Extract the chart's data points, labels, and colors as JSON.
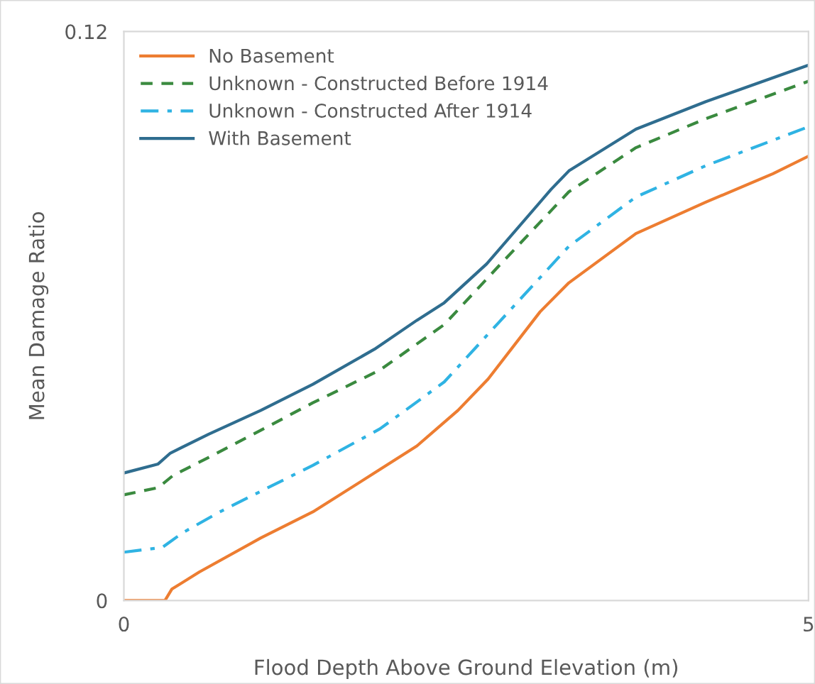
{
  "chart_data": {
    "type": "line",
    "xlabel": "Flood Depth Above Ground Elevation (m)",
    "ylabel": "Mean Damage Ratio",
    "xlim": [
      0,
      5
    ],
    "xticks": [
      0,
      5
    ],
    "ylim": [
      0,
      0.12
    ],
    "yticks": [
      0,
      0.12
    ],
    "grid": false,
    "legend": "top left",
    "series": [
      {
        "name": "No Basement",
        "color": "#ed7d31",
        "line_style": "solid",
        "x": [
          0,
          0.3,
          0.35,
          0.55,
          1.0,
          1.38,
          1.83,
          2.14,
          2.44,
          2.66,
          3.04,
          3.25,
          3.74,
          4.25,
          4.74,
          5
        ],
        "values": [
          0,
          0,
          0.0024,
          0.006,
          0.0132,
          0.0187,
          0.0269,
          0.0326,
          0.0401,
          0.0467,
          0.0609,
          0.067,
          0.0774,
          0.084,
          0.09,
          0.0937
        ]
      },
      {
        "name": "Unknown - Constructed Before 1914",
        "color": "#3a8a3f",
        "line_style": "dashed",
        "x": [
          0,
          0.25,
          0.36,
          0.62,
          1.0,
          1.38,
          1.87,
          2.34,
          2.74,
          3.25,
          3.74,
          4.25,
          5
        ],
        "values": [
          0.0223,
          0.0238,
          0.0264,
          0.0302,
          0.0359,
          0.0417,
          0.0486,
          0.0582,
          0.0706,
          0.0862,
          0.0955,
          0.1016,
          0.1095
        ]
      },
      {
        "name": "Unknown - Constructed After 1914",
        "color": "#2fb3e3",
        "line_style": "dashdot",
        "x": [
          0,
          0.28,
          0.43,
          0.7,
          1.08,
          1.38,
          1.87,
          2.34,
          2.74,
          3.25,
          3.74,
          4.25,
          5
        ],
        "values": [
          0.0102,
          0.0112,
          0.0143,
          0.0187,
          0.0242,
          0.0285,
          0.0362,
          0.0461,
          0.0587,
          0.0747,
          0.0851,
          0.0917,
          0.0999
        ]
      },
      {
        "name": "With Basement",
        "color": "#2f6d8f",
        "line_style": "solid",
        "x": [
          0,
          0.25,
          0.34,
          0.62,
          1.0,
          1.38,
          1.83,
          2.14,
          2.34,
          2.65,
          3.12,
          3.25,
          3.74,
          4.25,
          5
        ],
        "values": [
          0.0269,
          0.0288,
          0.0311,
          0.0351,
          0.0401,
          0.0456,
          0.053,
          0.0591,
          0.0628,
          0.071,
          0.0867,
          0.0906,
          0.0994,
          0.1052,
          0.1129
        ]
      }
    ]
  }
}
